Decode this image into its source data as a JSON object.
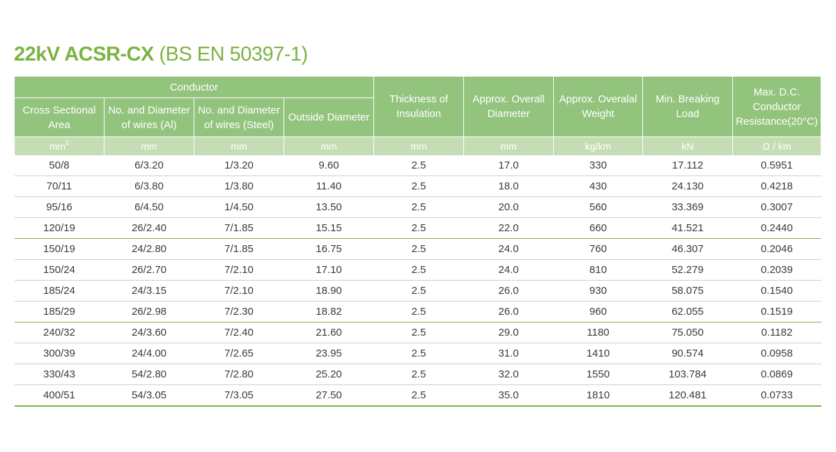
{
  "title": {
    "main": "22kV ACSR-CX",
    "standard": "(BS EN 50397-1)"
  },
  "header": {
    "conductor_group": "Conductor",
    "cross_sectional_area": "Cross Sectional Area",
    "wires_al": "No. and Diameter of wires (Al)",
    "wires_steel": "No. and Diameter of wires (Steel)",
    "outside_diameter": "Outside Diameter",
    "thickness_insulation": "Thickness of Insulation",
    "overall_diameter": "Approx. Overall Diameter",
    "overall_weight": "Approx. Overalal Weight",
    "breaking_load": "Min. Breaking Load",
    "dc_resistance": "Max. D.C. Conductor Resistance(20°C)"
  },
  "units": {
    "area_base": "mm",
    "area_exp": "2",
    "wires_al": "mm",
    "wires_steel": "mm",
    "outside_diameter": "mm",
    "thickness": "mm",
    "overall_diameter": "mm",
    "weight": "kg/km",
    "breaking_load": "kN",
    "resistance": "Ω / km"
  },
  "rows": [
    [
      "50/8",
      "6/3.20",
      "1/3.20",
      "9.60",
      "2.5",
      "17.0",
      "330",
      "17.112",
      "0.5951"
    ],
    [
      "70/11",
      "6/3.80",
      "1/3.80",
      "11.40",
      "2.5",
      "18.0",
      "430",
      "24.130",
      "0.4218"
    ],
    [
      "95/16",
      "6/4.50",
      "1/4.50",
      "13.50",
      "2.5",
      "20.0",
      "560",
      "33.369",
      "0.3007"
    ],
    [
      "120/19",
      "26/2.40",
      "7/1.85",
      "15.15",
      "2.5",
      "22.0",
      "660",
      "41.521",
      "0.2440"
    ],
    [
      "150/19",
      "24/2.80",
      "7/1.85",
      "16.75",
      "2.5",
      "24.0",
      "760",
      "46.307",
      "0.2046"
    ],
    [
      "150/24",
      "26/2.70",
      "7/2.10",
      "17.10",
      "2.5",
      "24.0",
      "810",
      "52.279",
      "0.2039"
    ],
    [
      "185/24",
      "24/3.15",
      "7/2.10",
      "18.90",
      "2.5",
      "26.0",
      "930",
      "58.075",
      "0.1540"
    ],
    [
      "185/29",
      "26/2.98",
      "7/2.30",
      "18.82",
      "2.5",
      "26.0",
      "960",
      "62.055",
      "0.1519"
    ],
    [
      "240/32",
      "24/3.60",
      "7/2.40",
      "21.60",
      "2.5",
      "29.0",
      "1180",
      "75.050",
      "0.1182"
    ],
    [
      "300/39",
      "24/4.00",
      "7/2.65",
      "23.95",
      "2.5",
      "31.0",
      "1410",
      "90.574",
      "0.0958"
    ],
    [
      "330/43",
      "54/2.80",
      "7/2.80",
      "25.20",
      "2.5",
      "32.0",
      "1550",
      "103.784",
      "0.0869"
    ],
    [
      "400/51",
      "54/3.05",
      "7/3.05",
      "27.50",
      "2.5",
      "35.0",
      "1810",
      "120.481",
      "0.0733"
    ]
  ],
  "colors": {
    "accent": "#7cb342",
    "header_bg": "#93c47d",
    "units_bg": "#c5ddb4"
  }
}
